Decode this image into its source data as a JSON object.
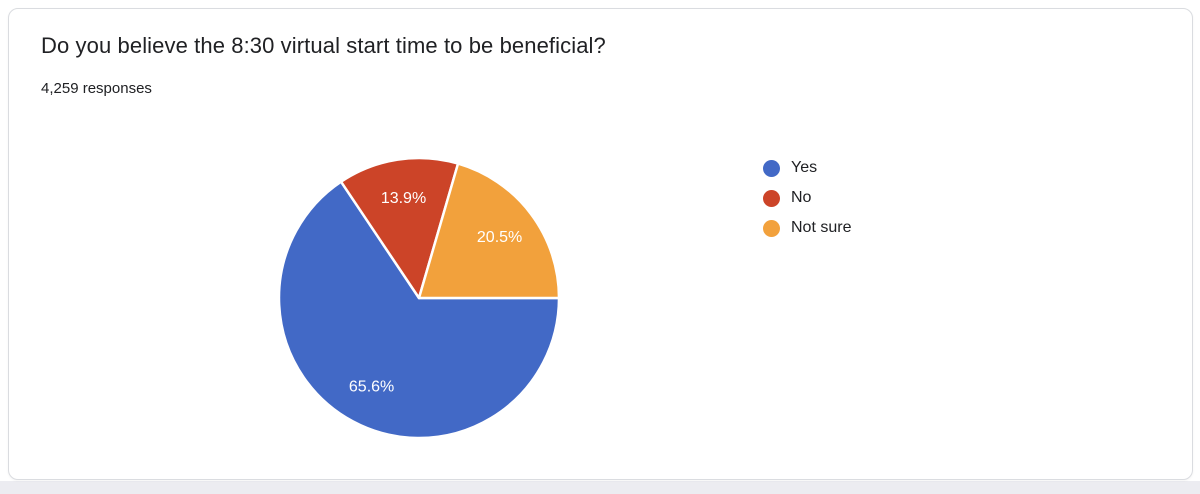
{
  "card": {
    "title": "Do you believe the 8:30 virtual start time to be beneficial?",
    "responses_label": "4,259 responses"
  },
  "chart_data": {
    "type": "pie",
    "title": "Do you believe the 8:30 virtual start time to be beneficial?",
    "subtitle": "4,259 responses",
    "total_responses": 4259,
    "legend_position": "right",
    "slice_labels": "percent",
    "start_angle_deg": 0,
    "direction": "clockwise",
    "slices": [
      {
        "label": "Yes",
        "percent": 65.6,
        "percent_label": "65.6%",
        "color": "#4269c6"
      },
      {
        "label": "No",
        "percent": 13.9,
        "percent_label": "13.9%",
        "color": "#cc4428"
      },
      {
        "label": "Not sure",
        "percent": 20.5,
        "percent_label": "20.5%",
        "color": "#f2a13c"
      }
    ],
    "slice_border_color": "#ffffff"
  }
}
